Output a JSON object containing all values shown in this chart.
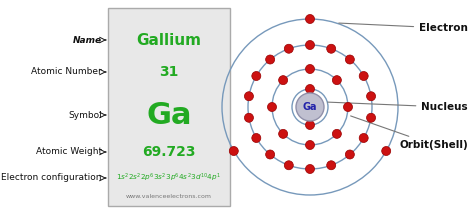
{
  "bg_color": "#ffffff",
  "left_panel_bg": "#e8e8e8",
  "left_panel_border": "#aaaaaa",
  "green_color": "#22aa22",
  "black_color": "#111111",
  "gray_color": "#777777",
  "name_label": "Name",
  "atomic_number_label": "Atomic Number",
  "symbol_label": "Symbol",
  "atomic_weight_label": "Atomic Weight",
  "electron_config_label": "Electron configuration",
  "element_name": "Gallium",
  "atomic_number": "31",
  "symbol": "Ga",
  "atomic_weight": "69.723",
  "website": "www.valenceelectrons.com",
  "nucleus_label": "Ga",
  "nucleus_color": "#c0c0d0",
  "nucleus_edge": "#9090aa",
  "orbit_color": "#7799bb",
  "electron_color": "#cc1111",
  "electron_edge": "#990000",
  "annotation_electron": "Electron",
  "annotation_nucleus": "Nucleus",
  "annotation_orbit": "Orbit(Shell)",
  "shells": [
    2,
    8,
    18,
    3
  ],
  "note_fontsize": 6.5,
  "panel_label_fontsize": 6.5
}
